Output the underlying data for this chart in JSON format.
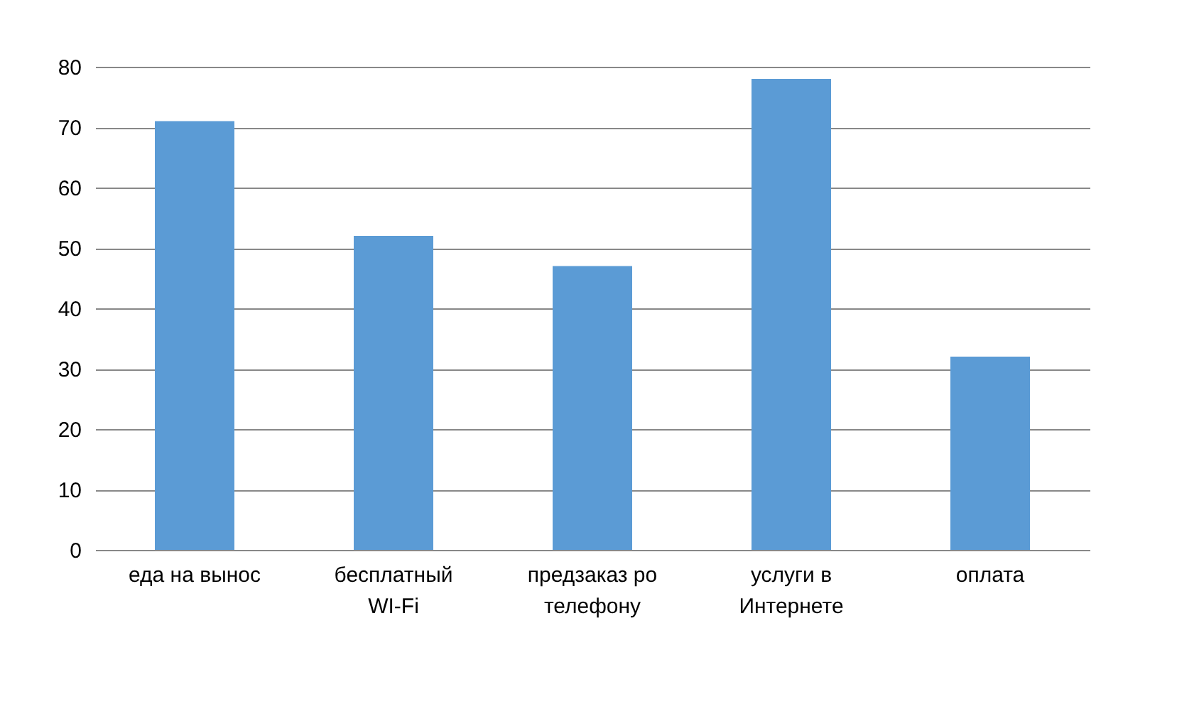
{
  "chart_data": {
    "type": "bar",
    "categories": [
      "еда на вынос",
      "бесплатный WI-Fi",
      "предзаказ ро телефону",
      "услуги в Интернете",
      "оплата"
    ],
    "values": [
      71,
      52,
      47,
      78,
      32
    ],
    "color": "#5b9bd5",
    "ylim": [
      0,
      80
    ],
    "yticks": [
      0,
      10,
      20,
      30,
      40,
      50,
      60,
      70,
      80
    ],
    "grid": "y"
  }
}
